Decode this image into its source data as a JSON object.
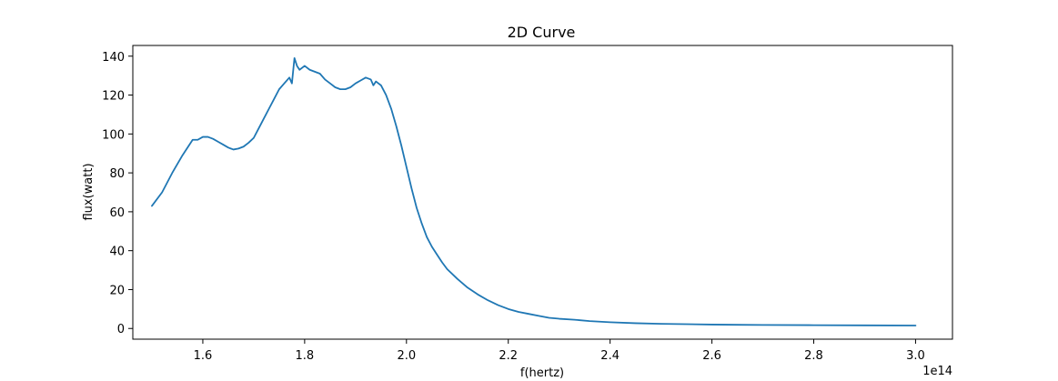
{
  "chart_data": {
    "type": "line",
    "title": "2D Curve",
    "xlabel": "f(hertz)",
    "ylabel": "flux(watt)",
    "x_offset_label": "1e14",
    "xlim": [
      1.4625,
      3.0725
    ],
    "ylim": [
      -5.5,
      145.5
    ],
    "xticks": [
      1.6,
      1.8,
      2.0,
      2.2,
      2.4,
      2.6,
      2.8,
      3.0
    ],
    "xtick_labels": [
      "1.6",
      "1.8",
      "2.0",
      "2.2",
      "2.4",
      "2.6",
      "2.8",
      "3.0"
    ],
    "yticks": [
      0,
      20,
      40,
      60,
      80,
      100,
      120,
      140
    ],
    "ytick_labels": [
      "0",
      "20",
      "40",
      "60",
      "80",
      "100",
      "120",
      "140"
    ],
    "grid": false,
    "line_color": "#1f77b4",
    "series": [
      {
        "x": [
          1.5,
          1.52,
          1.54,
          1.56,
          1.58,
          1.59,
          1.6,
          1.61,
          1.62,
          1.63,
          1.64,
          1.65,
          1.66,
          1.67,
          1.68,
          1.69,
          1.7,
          1.71,
          1.72,
          1.73,
          1.74,
          1.75,
          1.76,
          1.77,
          1.775,
          1.78,
          1.785,
          1.79,
          1.8,
          1.81,
          1.82,
          1.83,
          1.84,
          1.85,
          1.86,
          1.87,
          1.88,
          1.89,
          1.9,
          1.91,
          1.92,
          1.93,
          1.935,
          1.94,
          1.95,
          1.96,
          1.97,
          1.98,
          1.99,
          2.0,
          2.01,
          2.02,
          2.03,
          2.04,
          2.05,
          2.06,
          2.07,
          2.08,
          2.1,
          2.12,
          2.14,
          2.16,
          2.18,
          2.2,
          2.22,
          2.24,
          2.26,
          2.28,
          2.3,
          2.33,
          2.36,
          2.4,
          2.45,
          2.5,
          2.55,
          2.6,
          2.65,
          2.7,
          2.8,
          2.9,
          3.0
        ],
        "values": [
          63,
          70,
          80,
          89,
          97,
          97,
          98.5,
          98.5,
          97.5,
          96,
          94.5,
          93,
          92,
          92.5,
          93.5,
          95.5,
          98,
          103,
          108,
          113,
          118,
          123,
          126,
          129,
          126,
          139,
          135,
          133,
          135,
          133,
          132,
          131,
          128,
          126,
          124,
          123,
          123,
          124,
          126,
          127.5,
          129,
          128,
          125,
          127,
          125,
          120,
          113,
          104,
          94,
          83,
          72,
          62,
          54,
          47,
          42,
          38,
          34,
          30.5,
          25.5,
          21,
          17.5,
          14.5,
          12,
          10,
          8.5,
          7.5,
          6.5,
          5.5,
          5,
          4.5,
          3.8,
          3.2,
          2.7,
          2.4,
          2.2,
          2.0,
          1.9,
          1.8,
          1.7,
          1.6,
          1.5
        ]
      }
    ]
  }
}
